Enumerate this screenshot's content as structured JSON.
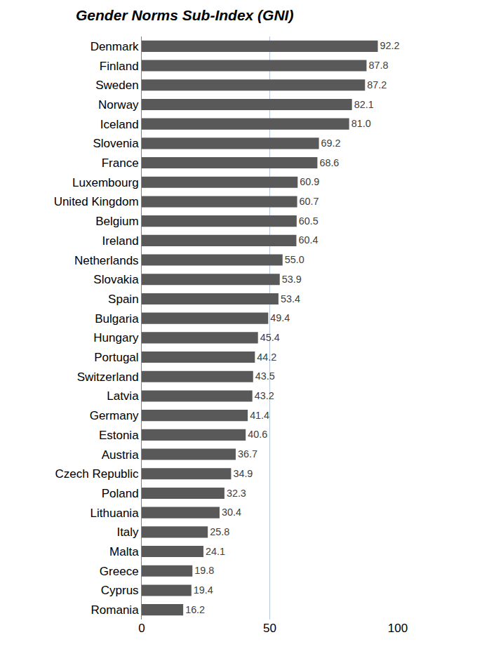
{
  "chart_data": {
    "type": "bar",
    "title": "Gender Norms Sub-Index (GNI)",
    "orientation": "horizontal",
    "categories": [
      "Denmark",
      "Finland",
      "Sweden",
      "Norway",
      "Iceland",
      "Slovenia",
      "France",
      "Luxembourg",
      "United Kingdom",
      "Belgium",
      "Ireland",
      "Netherlands",
      "Slovakia",
      "Spain",
      "Bulgaria",
      "Hungary",
      "Portugal",
      "Switzerland",
      "Latvia",
      "Germany",
      "Estonia",
      "Austria",
      "Czech Republic",
      "Poland",
      "Lithuania",
      "Italy",
      "Malta",
      "Greece",
      "Cyprus",
      "Romania"
    ],
    "values": [
      92.2,
      87.8,
      87.2,
      82.1,
      81.0,
      69.2,
      68.6,
      60.9,
      60.7,
      60.5,
      60.4,
      55.0,
      53.9,
      53.4,
      49.4,
      45.4,
      44.2,
      43.5,
      43.2,
      41.4,
      40.6,
      36.7,
      34.9,
      32.3,
      30.4,
      25.8,
      24.1,
      19.8,
      19.4,
      16.2
    ],
    "value_labels": [
      "92.2",
      "87.8",
      "87.2",
      "82.1",
      "81.0",
      "69.2",
      "68.6",
      "60.9",
      "60.7",
      "60.5",
      "60.4",
      "55.0",
      "53.9",
      "53.4",
      "49.4",
      "45.4",
      "44.2",
      "43.5",
      "43.2",
      "41.4",
      "40.6",
      "36.7",
      "34.9",
      "32.3",
      "30.4",
      "25.8",
      "24.1",
      "19.8",
      "19.4",
      "16.2"
    ],
    "color": "#595959",
    "xlim": [
      0,
      100
    ],
    "xticks": [
      0,
      50,
      100
    ],
    "grid": true,
    "data_labels": true
  }
}
